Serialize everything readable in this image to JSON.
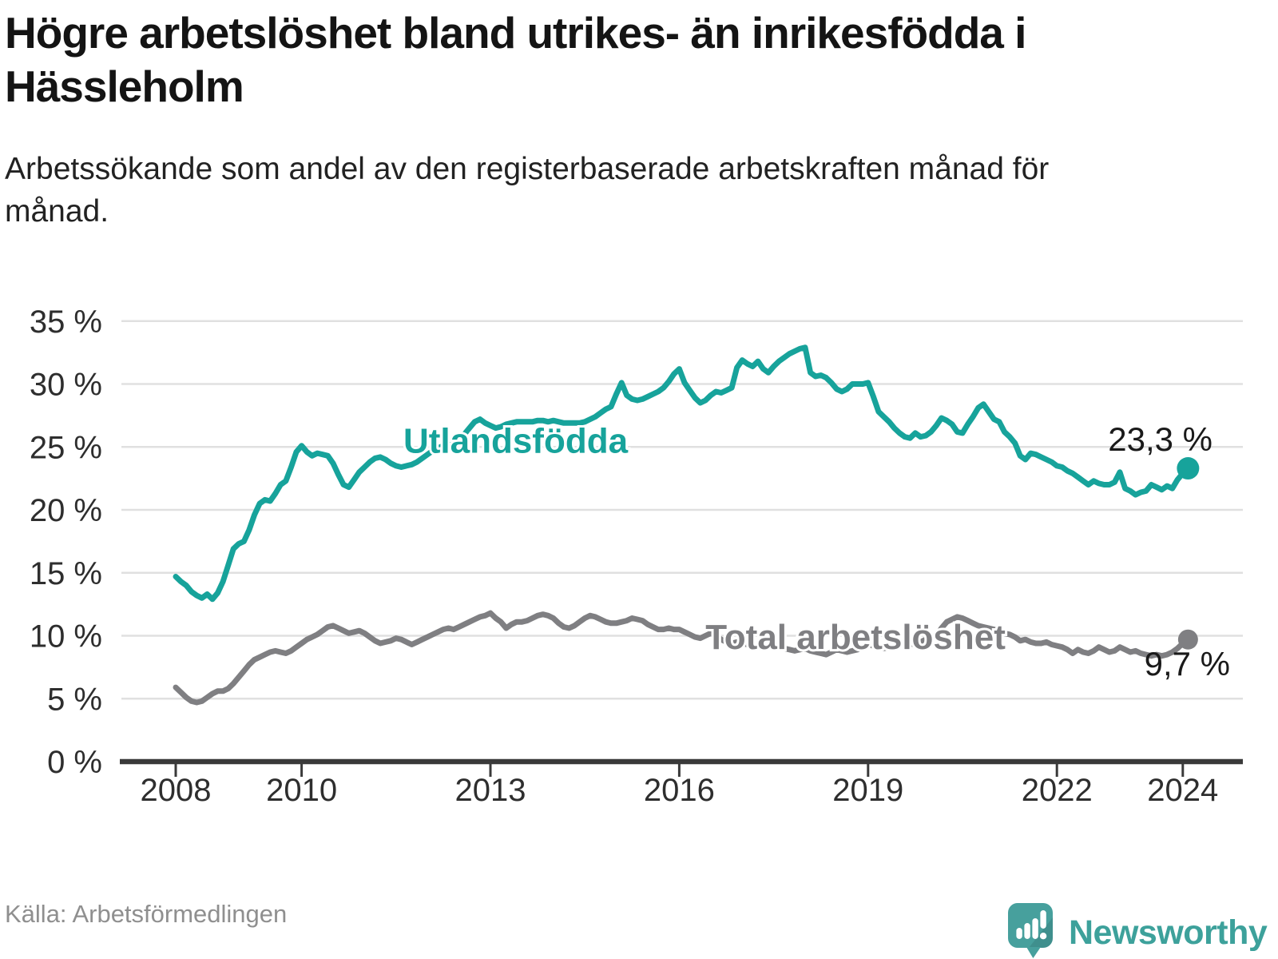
{
  "header": {
    "title": "Högre arbetslöshet bland utrikes- än inrikesfödda i Hässleholm",
    "subtitle": "Arbetssökande som andel av den registerbaserade arbetskraften månad för månad."
  },
  "footer": {
    "source": "Källa: Arbetsförmedlingen",
    "brand": "Newsworthy"
  },
  "colors": {
    "teal_line": "#17a39b",
    "gray_line": "#7f7f82",
    "gridline": "#e0e0e0",
    "axis": "#3a3a3a",
    "tick_text": "#2e2e2e",
    "value_text": "#1a1a1a",
    "logo_teal": "#47a09d",
    "logo_shade": "#3c8f8d",
    "wordmark_teal": "#3da19b"
  },
  "chart_data": {
    "type": "line",
    "title": "Högre arbetslöshet bland utrikes- än inrikesfödda i Hässleholm",
    "xlabel": "",
    "ylabel": "Arbetssökande som andel av den registerbaserade arbetskraften",
    "x_unit": "månad",
    "x_start_year": 2008,
    "x_start_month": 1,
    "x_end_year": 2024,
    "x_end_month": 2,
    "x_ticks": [
      2008,
      2010,
      2013,
      2016,
      2019,
      2022,
      2024
    ],
    "ylim": [
      0,
      35
    ],
    "y_ticks": [
      0,
      5,
      10,
      15,
      20,
      25,
      30,
      35
    ],
    "y_tick_labels": [
      "0 %",
      "5 %",
      "10 %",
      "15 %",
      "20 %",
      "25 %",
      "30 %",
      "35 %"
    ],
    "grid": "horizontal",
    "legend_position": "inline",
    "series": [
      {
        "name": "Total arbetslöshet",
        "color": "#7f7f82",
        "inline_label": {
          "year": 2018.8,
          "value": 9.9
        },
        "end_label": "9,7 %",
        "end_value": 9.7,
        "end_label_pos": "below",
        "values": [
          5.9,
          5.5,
          5.1,
          4.8,
          4.7,
          4.8,
          5.1,
          5.4,
          5.6,
          5.6,
          5.8,
          6.2,
          6.7,
          7.2,
          7.7,
          8.1,
          8.3,
          8.5,
          8.7,
          8.8,
          8.7,
          8.6,
          8.8,
          9.1,
          9.4,
          9.7,
          9.9,
          10.1,
          10.4,
          10.7,
          10.8,
          10.6,
          10.4,
          10.2,
          10.3,
          10.4,
          10.2,
          9.9,
          9.6,
          9.4,
          9.5,
          9.6,
          9.8,
          9.7,
          9.5,
          9.3,
          9.5,
          9.7,
          9.9,
          10.1,
          10.3,
          10.5,
          10.6,
          10.5,
          10.7,
          10.9,
          11.1,
          11.3,
          11.5,
          11.6,
          11.8,
          11.4,
          11.1,
          10.6,
          10.9,
          11.1,
          11.1,
          11.2,
          11.4,
          11.6,
          11.7,
          11.6,
          11.4,
          11.0,
          10.7,
          10.6,
          10.8,
          11.1,
          11.4,
          11.6,
          11.5,
          11.3,
          11.1,
          11.0,
          11.0,
          11.1,
          11.2,
          11.4,
          11.3,
          11.2,
          10.9,
          10.7,
          10.5,
          10.5,
          10.6,
          10.5,
          10.5,
          10.3,
          10.1,
          9.9,
          9.8,
          10.0,
          10.2,
          10.0,
          9.7,
          9.5,
          9.4,
          9.5,
          9.4,
          9.3,
          9.2,
          9.1,
          9.0,
          9.2,
          9.3,
          9.2,
          9.0,
          8.9,
          8.8,
          8.9,
          9.0,
          8.8,
          8.7,
          8.6,
          8.5,
          8.7,
          8.9,
          8.8,
          8.7,
          8.8,
          8.9,
          9.1,
          9.3,
          9.2,
          9.1,
          9.0,
          9.1,
          9.3,
          9.5,
          9.4,
          9.3,
          9.4,
          9.5,
          9.7,
          9.9,
          10.0,
          10.6,
          11.1,
          11.3,
          11.5,
          11.4,
          11.2,
          11.0,
          10.8,
          10.7,
          10.6,
          10.5,
          10.4,
          10.2,
          10.1,
          9.9,
          9.6,
          9.7,
          9.5,
          9.4,
          9.4,
          9.5,
          9.3,
          9.2,
          9.1,
          8.9,
          8.6,
          8.9,
          8.7,
          8.6,
          8.8,
          9.1,
          8.9,
          8.7,
          8.8,
          9.1,
          8.9,
          8.7,
          8.8,
          8.6,
          8.5,
          8.4,
          8.5,
          8.4,
          8.5,
          8.7,
          9.0,
          9.4,
          9.7
        ]
      },
      {
        "name": "Utlandsfödda",
        "color": "#17a39b",
        "inline_label": {
          "year": 2013.4,
          "value": 25.5
        },
        "end_label": "23,3 %",
        "end_value": 23.3,
        "end_label_pos": "above",
        "values": [
          14.7,
          14.3,
          14.0,
          13.5,
          13.2,
          13.0,
          13.3,
          12.9,
          13.4,
          14.3,
          15.6,
          16.9,
          17.3,
          17.5,
          18.4,
          19.6,
          20.5,
          20.8,
          20.7,
          21.3,
          22.0,
          22.3,
          23.4,
          24.6,
          25.1,
          24.6,
          24.3,
          24.5,
          24.4,
          24.3,
          23.7,
          22.8,
          22.0,
          21.8,
          22.4,
          23.0,
          23.4,
          23.8,
          24.1,
          24.2,
          24.0,
          23.7,
          23.5,
          23.4,
          23.5,
          23.6,
          23.8,
          24.1,
          24.4,
          24.7,
          24.9,
          25.1,
          25.3,
          25.5,
          25.7,
          26.0,
          26.5,
          27.0,
          27.2,
          26.9,
          26.7,
          26.5,
          26.6,
          26.8,
          26.9,
          27.0,
          27.0,
          27.0,
          27.0,
          27.1,
          27.1,
          27.0,
          27.1,
          27.0,
          26.9,
          26.9,
          26.9,
          26.9,
          27.0,
          27.2,
          27.4,
          27.7,
          28.0,
          28.2,
          29.2,
          30.1,
          29.1,
          28.8,
          28.7,
          28.8,
          29.0,
          29.2,
          29.4,
          29.7,
          30.2,
          30.8,
          31.2,
          30.1,
          29.5,
          28.9,
          28.5,
          28.7,
          29.1,
          29.4,
          29.3,
          29.5,
          29.7,
          31.3,
          31.9,
          31.6,
          31.4,
          31.8,
          31.2,
          30.9,
          31.4,
          31.8,
          32.1,
          32.4,
          32.6,
          32.8,
          32.9,
          30.9,
          30.6,
          30.7,
          30.5,
          30.1,
          29.6,
          29.4,
          29.6,
          30.0,
          30.0,
          30.0,
          30.1,
          29.0,
          27.8,
          27.4,
          27.0,
          26.5,
          26.1,
          25.8,
          25.7,
          26.1,
          25.8,
          25.9,
          26.2,
          26.7,
          27.3,
          27.1,
          26.8,
          26.2,
          26.1,
          26.8,
          27.4,
          28.1,
          28.4,
          27.8,
          27.2,
          27.0,
          26.2,
          25.8,
          25.3,
          24.3,
          24.0,
          24.5,
          24.4,
          24.2,
          24.0,
          23.8,
          23.5,
          23.4,
          23.1,
          22.9,
          22.6,
          22.3,
          22.0,
          22.3,
          22.1,
          22.0,
          22.0,
          22.2,
          23.0,
          21.7,
          21.5,
          21.2,
          21.4,
          21.5,
          22.0,
          21.8,
          21.6,
          21.9,
          21.7,
          22.4,
          22.9,
          23.3
        ]
      }
    ]
  }
}
